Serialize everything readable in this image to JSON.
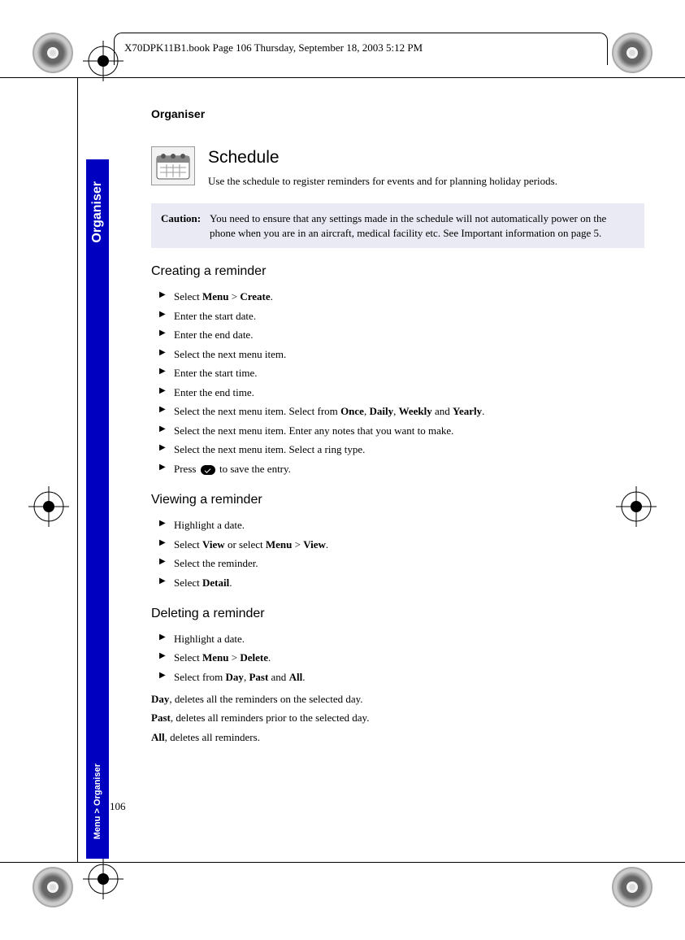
{
  "header": {
    "meta_line": "X70DPK11B1.book  Page 106  Thursday, September 18, 2003  5:12 PM"
  },
  "page_number": "106",
  "sidetab": {
    "top": "Organiser",
    "bottom": "Menu > Organiser"
  },
  "section_label": "Organiser",
  "schedule": {
    "title": "Schedule",
    "intro": "Use the schedule to register reminders for events and for planning holiday periods."
  },
  "caution": {
    "label": "Caution:",
    "text": "You need to ensure that any settings made in the schedule will not automatically power on the phone when you are in an aircraft, medical facility etc. See Important information on page 5."
  },
  "creating": {
    "heading": "Creating a reminder",
    "steps": [
      {
        "pre": "Select ",
        "b1": "Menu",
        "mid": " > ",
        "b2": "Create",
        "post": "."
      },
      {
        "text": "Enter the start date."
      },
      {
        "text": "Enter the end date."
      },
      {
        "text": "Select the next menu item."
      },
      {
        "text": "Enter the start time."
      },
      {
        "text": "Enter the end time."
      },
      {
        "pre": "Select the next menu item. Select from ",
        "b1": "Once",
        "mid1": ", ",
        "b2": "Daily",
        "mid2": ", ",
        "b3": "Weekly",
        "mid3": " and ",
        "b4": "Yearly",
        "post": "."
      },
      {
        "text": "Select the next menu item. Enter any notes that you want to make."
      },
      {
        "text": "Select the next menu item. Select a ring type."
      },
      {
        "pre": "Press ",
        "icon": true,
        "post": " to save the entry."
      }
    ]
  },
  "viewing": {
    "heading": "Viewing a reminder",
    "steps": [
      {
        "text": "Highlight a date."
      },
      {
        "pre": "Select ",
        "b1": "View",
        "mid": " or select ",
        "b2": "Menu",
        "mid2": " > ",
        "b3": "View",
        "post": "."
      },
      {
        "text": "Select the reminder."
      },
      {
        "pre": "Select ",
        "b1": "Detail",
        "post": "."
      }
    ]
  },
  "deleting": {
    "heading": "Deleting a reminder",
    "steps": [
      {
        "text": "Highlight a date."
      },
      {
        "pre": "Select ",
        "b1": "Menu",
        "mid": " > ",
        "b2": "Delete",
        "post": "."
      },
      {
        "pre": "Select from ",
        "b1": "Day",
        "mid1": ", ",
        "b2": "Past",
        "mid2": " and ",
        "b3": "All",
        "post": "."
      }
    ],
    "notes": [
      {
        "b": "Day",
        "t": ", deletes all the reminders on the selected day."
      },
      {
        "b": "Past",
        "t": ", deletes all reminders prior to the selected day."
      },
      {
        "b": "All",
        "t": ", deletes all reminders."
      }
    ]
  }
}
